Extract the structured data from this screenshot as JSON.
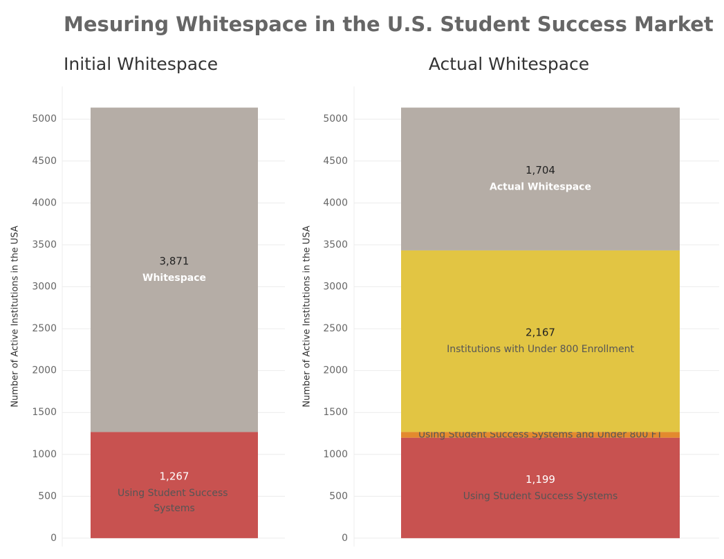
{
  "title": "Mesuring Whitespace in the U.S. Student Success Market",
  "chart_data": [
    {
      "type": "stacked-bar",
      "title": "Initial Whitespace",
      "y_label": "Number of Active Institutions in the USA",
      "ylim": [
        -100,
        5390
      ],
      "yticks": [
        0,
        500,
        1000,
        1500,
        2000,
        2500,
        3000,
        3500,
        4000,
        4500,
        5000
      ],
      "grid": true,
      "series": [
        {
          "name": "Using Student Success Systems",
          "color": "#c85250",
          "values": [
            1267
          ],
          "value_labels": [
            "1,267"
          ]
        },
        {
          "name": "Whitespace",
          "color": "#b5ada6",
          "values": [
            3871
          ],
          "value_labels": [
            "3,871"
          ]
        }
      ]
    },
    {
      "type": "stacked-bar",
      "title": "Actual Whitespace",
      "y_label": "Number of Active Institutions in the USA",
      "ylim": [
        -100,
        5390
      ],
      "yticks": [
        0,
        500,
        1000,
        1500,
        2000,
        2500,
        3000,
        3500,
        4000,
        4500,
        5000
      ],
      "grid": true,
      "series": [
        {
          "name": "Using Student Success Systems",
          "color": "#c85250",
          "values": [
            1199
          ],
          "value_labels": [
            "1,199"
          ]
        },
        {
          "name": "Using Student Success Systems and Under 800 FT",
          "color": "#e38a2e",
          "values": [
            68
          ]
        },
        {
          "name": "Institutions with Under 800 Enrollment",
          "color": "#e2c543",
          "values": [
            2167
          ],
          "value_labels": [
            "2,167"
          ]
        },
        {
          "name": "Actual Whitespace",
          "color": "#b5ada6",
          "values": [
            1704
          ],
          "value_labels": [
            "1,704"
          ]
        }
      ]
    }
  ]
}
